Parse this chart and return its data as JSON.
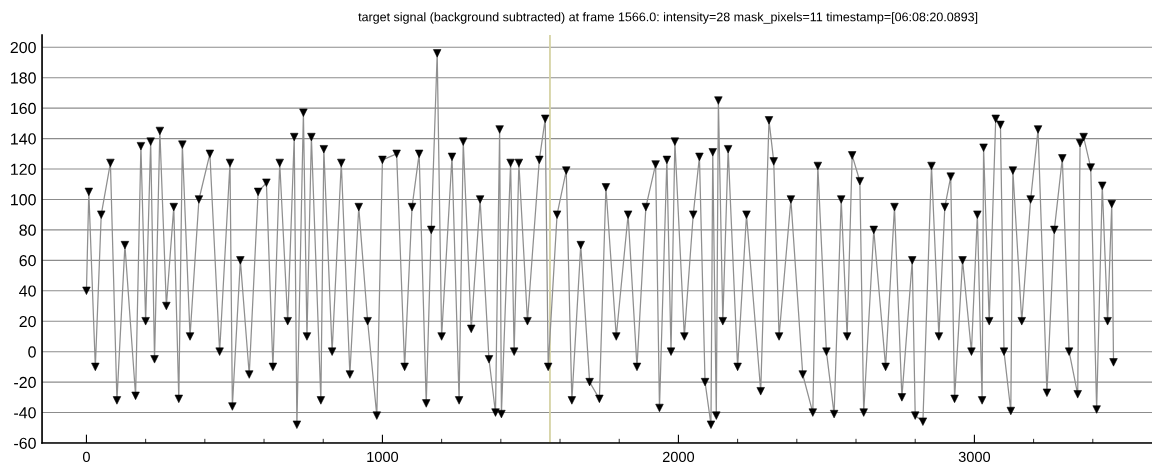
{
  "chart_data": {
    "type": "line",
    "title": "target signal (background subtracted) at frame 1566.0: intensity=28 mask_pixels=11 timestamp=[06:08:20.0893]",
    "x": [
      0,
      8,
      30,
      50,
      81,
      103,
      130,
      166,
      184,
      200,
      217,
      230,
      248,
      270,
      295,
      312,
      324,
      350,
      380,
      417,
      450,
      485,
      493,
      520,
      550,
      580,
      608,
      630,
      653,
      680,
      702,
      711,
      733,
      745,
      760,
      792,
      802,
      830,
      861,
      890,
      920,
      950,
      981,
      1000,
      1048,
      1075,
      1100,
      1124,
      1148,
      1165,
      1185,
      1200,
      1235,
      1259,
      1273,
      1300,
      1330,
      1360,
      1382,
      1396,
      1402,
      1433,
      1445,
      1461,
      1490,
      1530,
      1550,
      1560,
      1590,
      1621,
      1640,
      1670,
      1700,
      1733,
      1755,
      1790,
      1830,
      1860,
      1890,
      1923,
      1936,
      1961,
      1975,
      1988,
      2020,
      2050,
      2071,
      2090,
      2110,
      2116,
      2128,
      2135,
      2150,
      2168,
      2200,
      2230,
      2278,
      2306,
      2322,
      2340,
      2380,
      2420,
      2454,
      2471,
      2500,
      2526,
      2550,
      2570,
      2587,
      2613,
      2626,
      2660,
      2700,
      2730,
      2755,
      2790,
      2800,
      2826,
      2855,
      2880,
      2900,
      2920,
      2933,
      2960,
      2990,
      3010,
      3026,
      3031,
      3050,
      3072,
      3088,
      3100,
      3123,
      3130,
      3160,
      3190,
      3215,
      3245,
      3270,
      3297,
      3320,
      3349,
      3357,
      3369,
      3393,
      3413,
      3432,
      3450,
      3464,
      3470
    ],
    "series": [
      {
        "color": "#000000",
        "values": [
          40,
          105,
          -10,
          90,
          124,
          -32,
          70,
          -29,
          135,
          20,
          138,
          -5,
          145,
          30,
          95,
          -31,
          136,
          10,
          100,
          130,
          0,
          124,
          -36,
          60,
          -15,
          105,
          111,
          -10,
          124,
          20,
          141,
          -48,
          157,
          10,
          141,
          -32,
          133,
          0,
          124,
          -15,
          95,
          20,
          -42,
          126,
          130,
          -10,
          95,
          130,
          -34,
          80,
          196,
          10,
          128,
          -32,
          138,
          15,
          100,
          -5,
          -40,
          146,
          -41,
          124,
          0,
          124,
          20,
          126,
          153,
          -10,
          90,
          119,
          -32,
          70,
          -20,
          -31,
          108,
          10,
          90,
          -10,
          95,
          123,
          -37,
          126,
          0,
          138,
          10,
          90,
          128,
          -20,
          -48,
          131,
          -42,
          165,
          20,
          133,
          -10,
          90,
          -26,
          152,
          125,
          10,
          100,
          -15,
          -40,
          122,
          0,
          -41,
          100,
          10,
          129,
          112,
          -40,
          80,
          -10,
          95,
          -30,
          60,
          -42,
          -46,
          122,
          10,
          95,
          115,
          -31,
          60,
          0,
          90,
          -32,
          134,
          20,
          153,
          149,
          0,
          -39,
          119,
          20,
          100,
          146,
          -27,
          80,
          127,
          0,
          -28,
          137,
          141,
          121,
          -38,
          109,
          20,
          97,
          -7
        ]
      }
    ],
    "xlim": [
      -150,
      3600
    ],
    "ylim": [
      -60,
      208
    ],
    "xticks": [
      0,
      {
        "value": 200,
        "label": null
      },
      {
        "value": 400,
        "label": null
      },
      {
        "value": 600,
        "label": null
      },
      {
        "value": 800,
        "label": null
      },
      1000,
      {
        "value": 1200,
        "label": null
      },
      {
        "value": 1400,
        "label": null
      },
      {
        "value": 1600,
        "label": null
      },
      {
        "value": 1800,
        "label": null
      },
      2000,
      {
        "value": 2200,
        "label": null
      },
      {
        "value": 2400,
        "label": null
      },
      {
        "value": 2600,
        "label": null
      },
      {
        "value": 2800,
        "label": null
      },
      3000,
      {
        "value": 3200,
        "label": null
      },
      {
        "value": 3400,
        "label": null
      }
    ],
    "yticks": [
      -60,
      -40,
      -20,
      0,
      20,
      40,
      60,
      80,
      100,
      120,
      140,
      160,
      180,
      200
    ],
    "grid": "y",
    "marker": "triangle",
    "line_style": "solid",
    "ref_lines": [
      {
        "axis": "x",
        "value": 1566,
        "color": "#d6d3a5"
      }
    ]
  }
}
